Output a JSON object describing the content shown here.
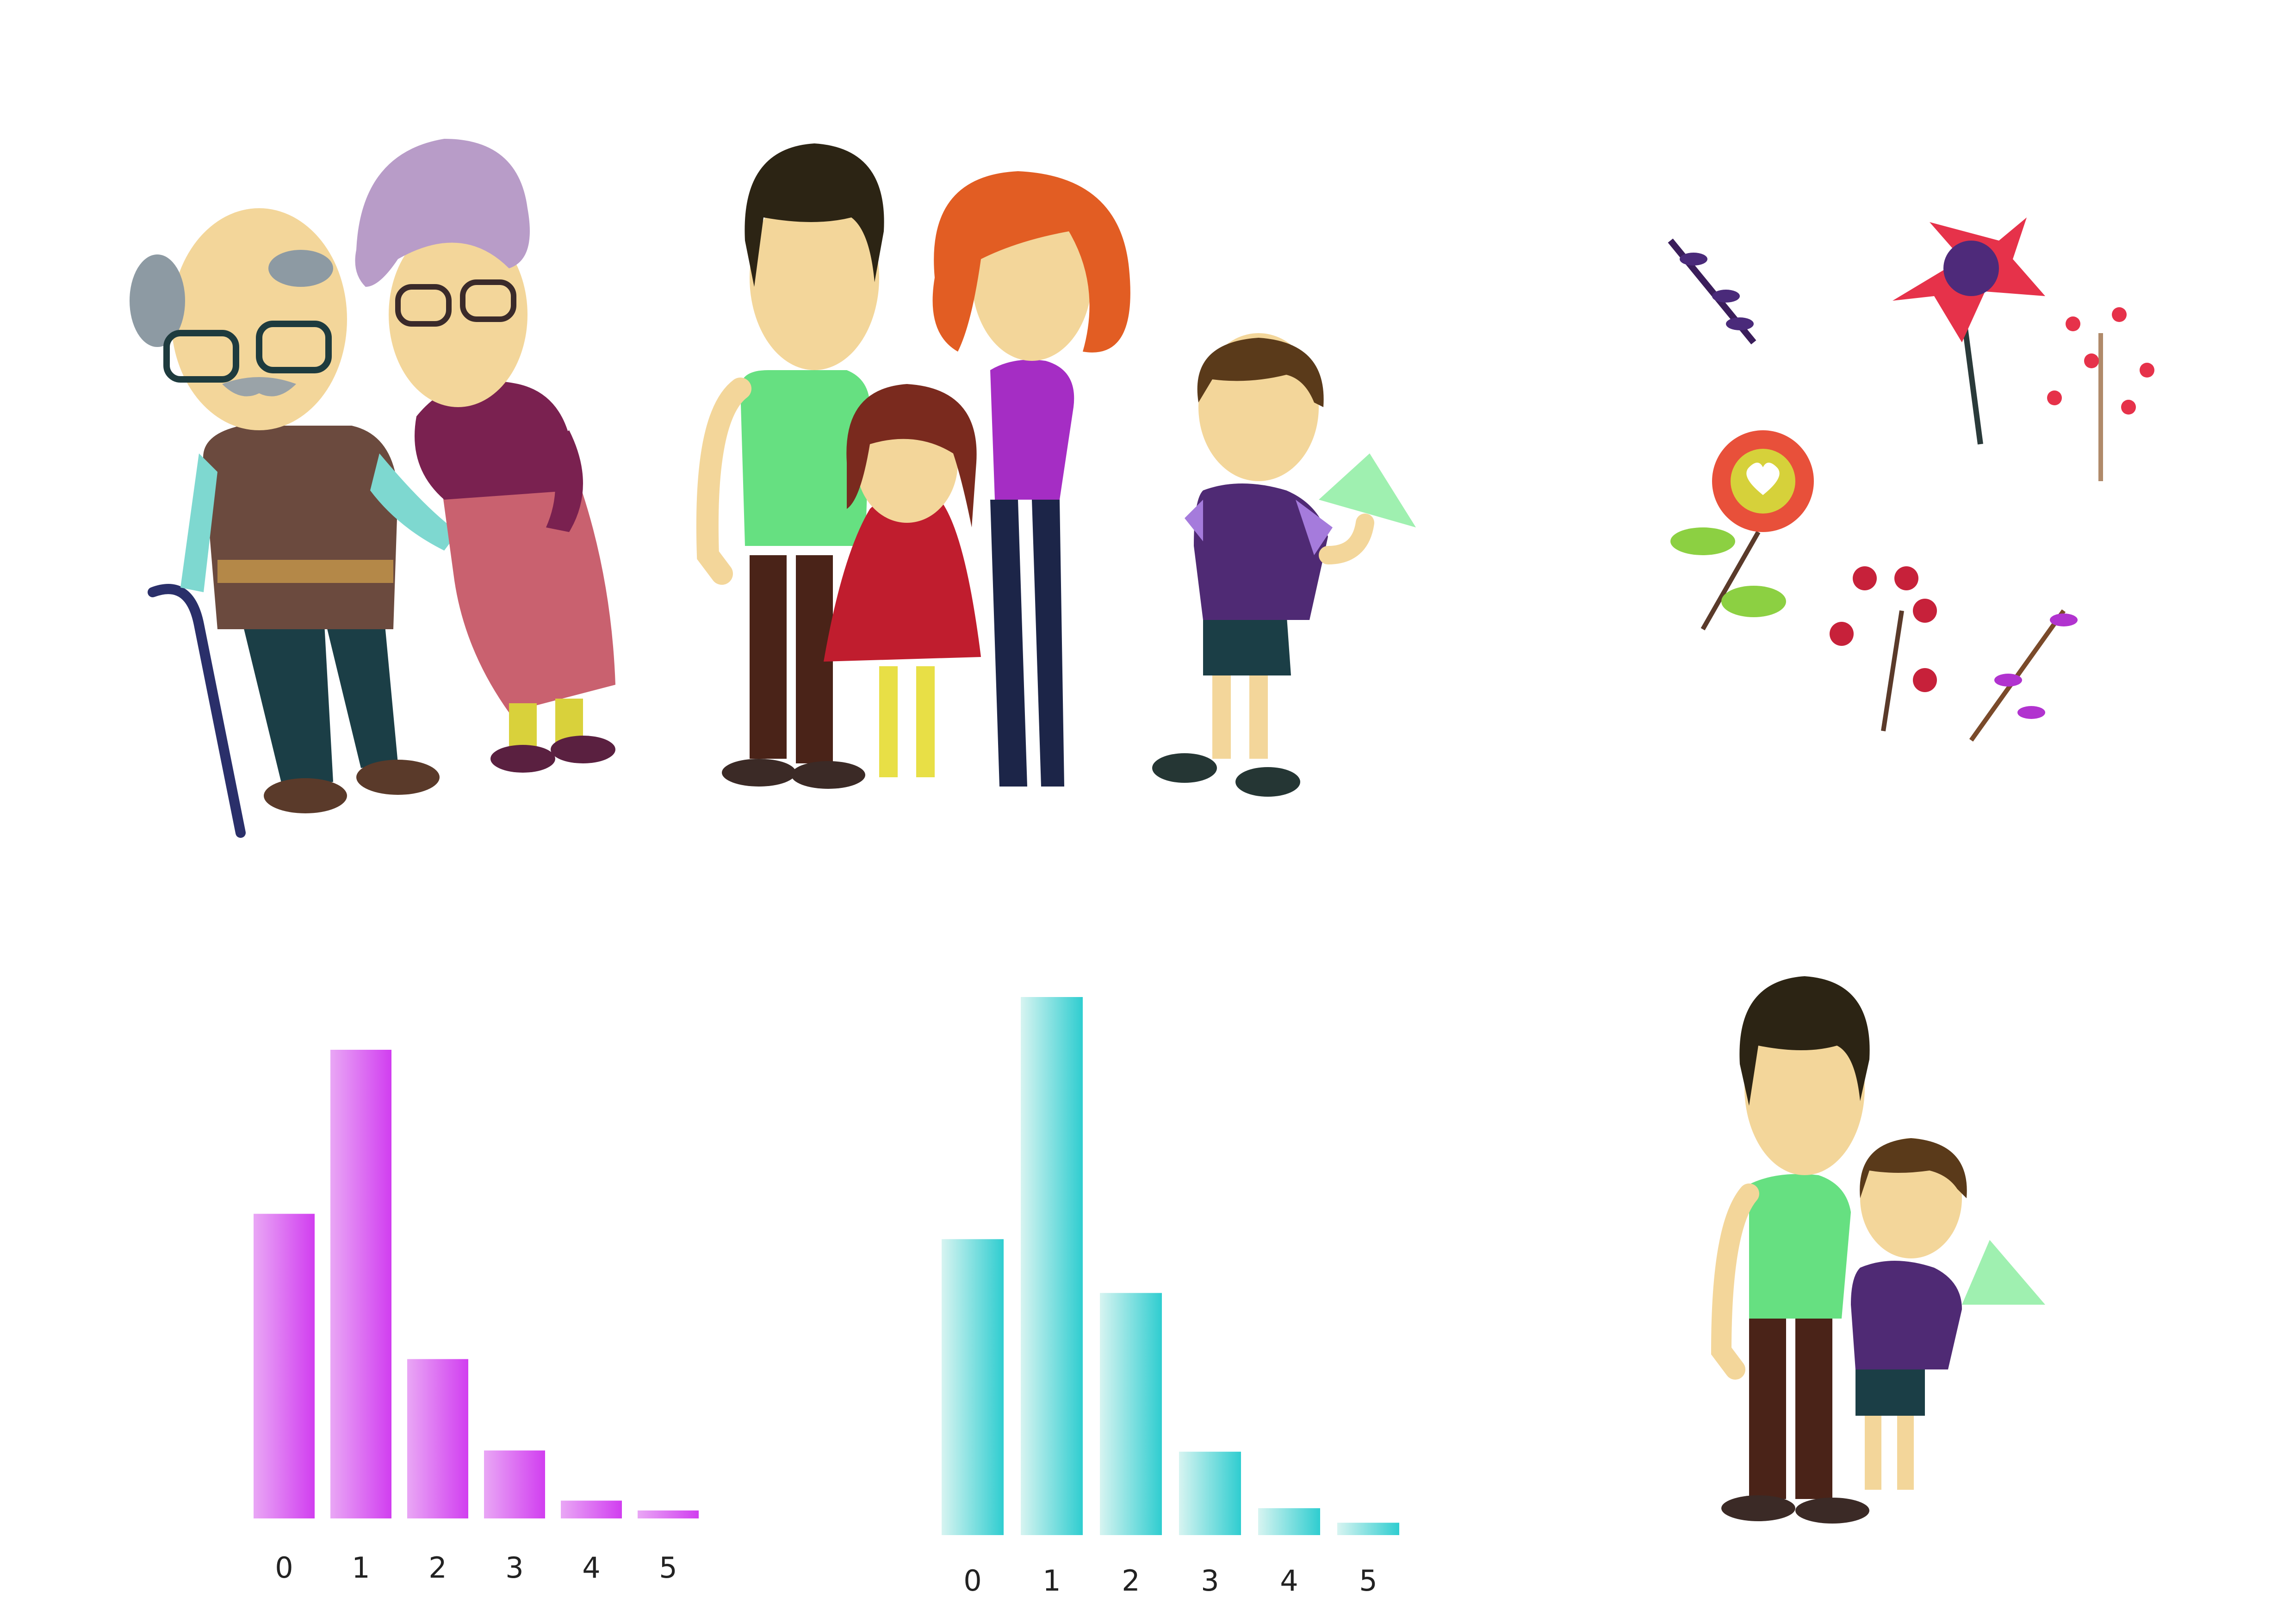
{
  "illustrations": [
    {
      "name": "grandparents-illustration",
      "icon": "elderly-couple-icon"
    },
    {
      "name": "family-illustration",
      "icon": "family-icon"
    },
    {
      "name": "boy-with-paper-plane-illustration",
      "icon": "boy-paper-plane-icon"
    },
    {
      "name": "flowers-illustration",
      "icon": "flowers-icon"
    },
    {
      "name": "father-and-son-illustration",
      "icon": "father-son-icon"
    }
  ],
  "chart_data": [
    {
      "type": "bar",
      "categories": [
        "0",
        "1",
        "2",
        "3",
        "4",
        "5"
      ],
      "values": [
        65,
        100,
        34,
        14.5,
        3.8,
        1.7
      ],
      "colors": {
        "from": "#e9a7f5",
        "to": "#d13ef0"
      },
      "grid": false
    },
    {
      "type": "bar",
      "categories": [
        "0",
        "1",
        "2",
        "3",
        "4",
        "5"
      ],
      "values": [
        55,
        100,
        45,
        15.5,
        5,
        2.3
      ],
      "colors": {
        "from": "#d7f4f1",
        "to": "#2fcdd0"
      },
      "grid": false
    }
  ]
}
